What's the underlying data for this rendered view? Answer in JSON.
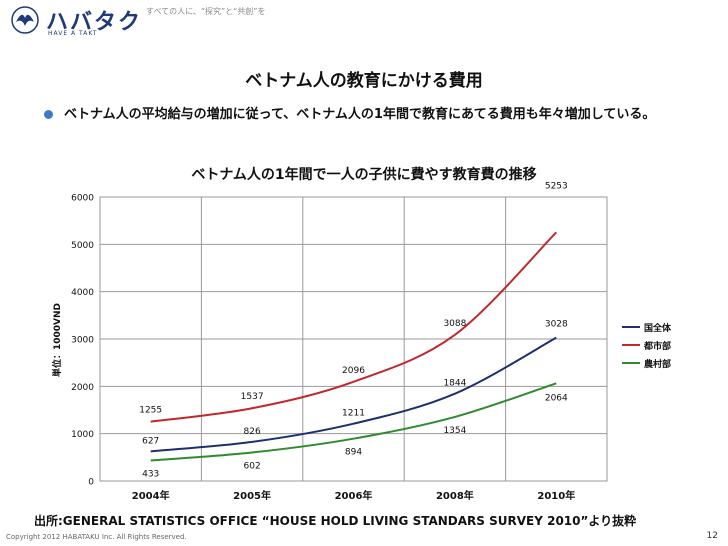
{
  "header": {
    "logo_text": "ハバタク",
    "logo_sub": "HAVE A TAKT",
    "tagline": "すべての人に、“探究”と“共創”を"
  },
  "slide": {
    "title": "ベトナム人の教育にかける費用",
    "bullet": "ベトナム人の平均給与の増加に従って、ベトナム人の1年間で教育にあてる費用も年々増加している。"
  },
  "chart_data": {
    "type": "line",
    "title": "ベトナム人の1年間で一人の子供に費やす教育費の推移",
    "xlabel": "",
    "ylabel": "単位：1000VND",
    "categories": [
      "2004年",
      "2005年",
      "2006年",
      "2008年",
      "2010年"
    ],
    "ylim": [
      0,
      6000
    ],
    "yticks": [
      "0",
      "1000",
      "2000",
      "3000",
      "4000",
      "5000",
      "6000"
    ],
    "grid": true,
    "legend": "right",
    "series": [
      {
        "name": "国全体",
        "color": "#1f2f6e",
        "values": [
          627,
          826,
          1211,
          1844,
          3028
        ],
        "labels": [
          "627",
          "826",
          "1211",
          "1844",
          "3028"
        ]
      },
      {
        "name": "都市部",
        "color": "#c0282d",
        "values": [
          1255,
          1537,
          2096,
          3088,
          5253
        ],
        "labels": [
          "1255",
          "1537",
          "2096",
          "3088",
          "5253"
        ]
      },
      {
        "name": "農村部",
        "color": "#2e8b2e",
        "values": [
          433,
          602,
          894,
          1354,
          2064
        ],
        "labels": [
          "433",
          "602",
          "894",
          "1354",
          "2064"
        ]
      }
    ]
  },
  "footer": {
    "source": "出所:GENERAL STATISTICS OFFICE “HOUSE HOLD LIVING STANDARS SURVEY 2010”より抜粋",
    "copyright": "Copyright 2012 HABATAKU Inc. All Rights Reserved.",
    "page": "12"
  }
}
